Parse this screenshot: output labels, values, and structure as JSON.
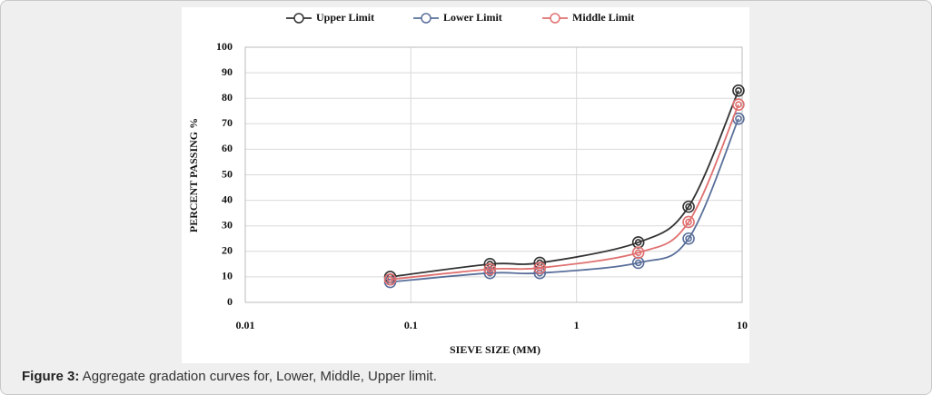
{
  "chart_data": {
    "type": "line",
    "x_label": "SIEVE SIZE (MM)",
    "y_label": "PERCENT PASSING  %",
    "x": [
      0.075,
      0.3,
      0.6,
      2.36,
      4.75,
      9.5
    ],
    "series": [
      {
        "name": "Upper Limit",
        "color": "#333333",
        "values": [
          10,
          15,
          15.5,
          23.5,
          37.5,
          83
        ]
      },
      {
        "name": "Lower Limit",
        "color": "#5a6f9a",
        "values": [
          8,
          11.5,
          11.5,
          15.5,
          25,
          72
        ]
      },
      {
        "name": "Middle Limit",
        "color": "#e07070",
        "values": [
          9,
          13,
          13.5,
          19.5,
          31.5,
          77.5
        ]
      }
    ],
    "xscale": "log",
    "xlim": [
      0.01,
      10
    ],
    "xticks": [
      0.01,
      0.1,
      1,
      10
    ],
    "ylim": [
      0,
      100
    ],
    "yticks": [
      0,
      10,
      20,
      30,
      40,
      50,
      60,
      70,
      80,
      90,
      100
    ],
    "grid": true,
    "legend": "top"
  },
  "caption": {
    "label": "Figure 3:",
    "text": " Aggregate gradation curves for, Lower, Middle, Upper limit."
  }
}
